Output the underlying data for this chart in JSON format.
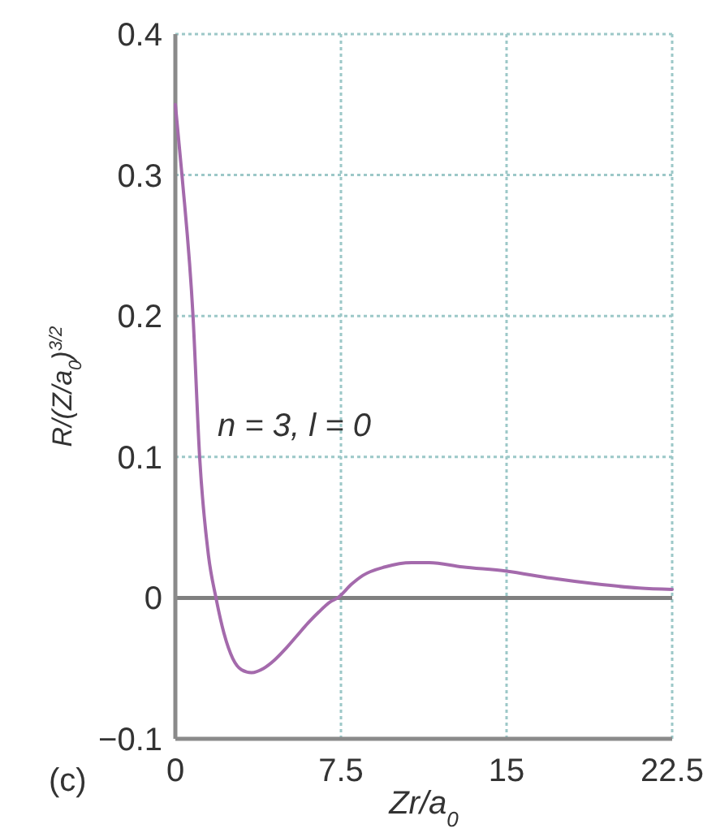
{
  "chart_data": {
    "type": "line",
    "xlabel": "Zr/a$_{0}$",
    "ylabel": "R/(Z/a$_{0}$)$^{3/2}$",
    "annotations": [
      "n = 3, l = 0",
      "(c)"
    ],
    "x": [
      0,
      0.3,
      0.8,
      1.1,
      1.5,
      1.84,
      2.2,
      2.6,
      3,
      3.45,
      4,
      4.5,
      5,
      5.5,
      6,
      6.5,
      7,
      7.35,
      8,
      8.5,
      9.5,
      10.7,
      11.5,
      13,
      15,
      17,
      19,
      21,
      22.5
    ],
    "series": [
      {
        "color": "#a46aac",
        "values": [
          0.35,
          0.3,
          0.2,
          0.1,
          0.03,
          0,
          -0.025,
          -0.043,
          -0.051,
          -0.053,
          -0.05,
          -0.044,
          -0.036,
          -0.027,
          -0.018,
          -0.01,
          -0.003,
          0,
          0.01,
          0.016,
          0.022,
          0.025,
          0.025,
          0.022,
          0.019,
          0.014,
          0.01,
          0.007,
          0.006
        ]
      }
    ],
    "xlim": [
      0,
      22.5
    ],
    "ylim": [
      -0.1,
      0.4
    ],
    "xticks": [
      0,
      7.5,
      15,
      22.5
    ],
    "yticks": [
      -0.1,
      0,
      0.1,
      0.2,
      0.3,
      0.4
    ],
    "grid": true,
    "ref_lines": [
      {
        "axis": "y",
        "value": 0,
        "color": "#808080",
        "line_style": "solid"
      }
    ]
  }
}
